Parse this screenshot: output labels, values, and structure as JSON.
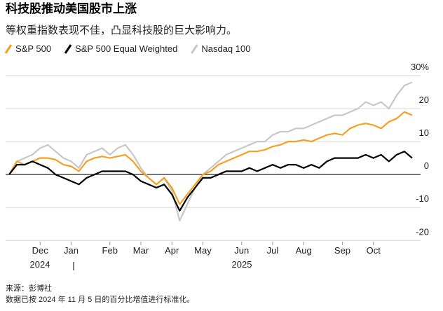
{
  "chart_data": {
    "type": "line",
    "title": "科技股推动美国股市上涨",
    "subtitle": "等权重指数表现不佳，凸显科技股的巨大影响力。",
    "categories": [
      null,
      null,
      null,
      null,
      "Dec",
      null,
      null,
      null,
      "Jan",
      null,
      null,
      null,
      null,
      "Feb",
      null,
      null,
      null,
      "Mar",
      null,
      null,
      null,
      "Apr",
      null,
      null,
      null,
      "May",
      null,
      null,
      null,
      null,
      "Jun",
      null,
      null,
      null,
      "Jul",
      null,
      null,
      null,
      "Aug",
      null,
      null,
      null,
      null,
      "Sep",
      null,
      null,
      null,
      "Oct",
      null,
      null,
      null,
      null,
      null
    ],
    "years": [
      "2024",
      "2025"
    ],
    "series": [
      {
        "name": "S&P 500",
        "color": "#f5a023",
        "values": [
          0,
          4,
          3,
          4,
          5,
          5,
          4.5,
          3,
          2.5,
          1,
          4,
          5,
          5.5,
          5,
          5.5,
          6,
          4,
          1,
          -1,
          -3,
          -1,
          -4,
          -9,
          -6,
          -3,
          0,
          1,
          3,
          4,
          5,
          6,
          7,
          7,
          7.5,
          8.5,
          9,
          10,
          10,
          10.5,
          10,
          11,
          12,
          12.5,
          12,
          14,
          15,
          15.5,
          15,
          14,
          16,
          17,
          19,
          18
        ]
      },
      {
        "name": "S&P 500 Equal Weighted",
        "color": "#000000",
        "values": [
          0,
          3,
          3,
          4,
          3,
          2,
          0,
          -1,
          -2,
          -3,
          -1,
          0,
          1,
          1,
          1,
          1,
          0,
          -2,
          -3,
          -4,
          -3,
          -6,
          -11,
          -7,
          -4,
          -1,
          -1,
          0,
          1,
          1,
          1,
          2,
          1,
          2,
          3,
          2,
          3,
          3,
          2,
          3,
          2,
          4,
          5,
          5,
          5,
          5,
          6,
          5,
          6,
          4,
          6,
          7,
          5
        ]
      },
      {
        "name": "Nasdaq 100",
        "color": "#c8c8c8",
        "values": [
          0,
          4,
          5,
          6,
          8,
          9,
          7,
          5,
          4,
          2,
          6,
          7,
          8,
          6,
          8,
          9,
          6,
          2,
          -1,
          -3,
          -1,
          -5,
          -14,
          -9,
          -4,
          0,
          2,
          4,
          6,
          7,
          8,
          9,
          10,
          10,
          12,
          13,
          13,
          14,
          14,
          15,
          16,
          17,
          18,
          18,
          19,
          20,
          22,
          21,
          22,
          20,
          24,
          27,
          28
        ]
      }
    ],
    "ylim": [
      -21,
      30
    ],
    "yticks": [
      -20,
      -10,
      0,
      10,
      20,
      {
        "value": 30,
        "label": "30%"
      }
    ],
    "grid": true,
    "notes": [
      "来源：彭博社",
      "数据已按 2024 年 11 月 5 日的百分比增值进行标准化。"
    ]
  }
}
